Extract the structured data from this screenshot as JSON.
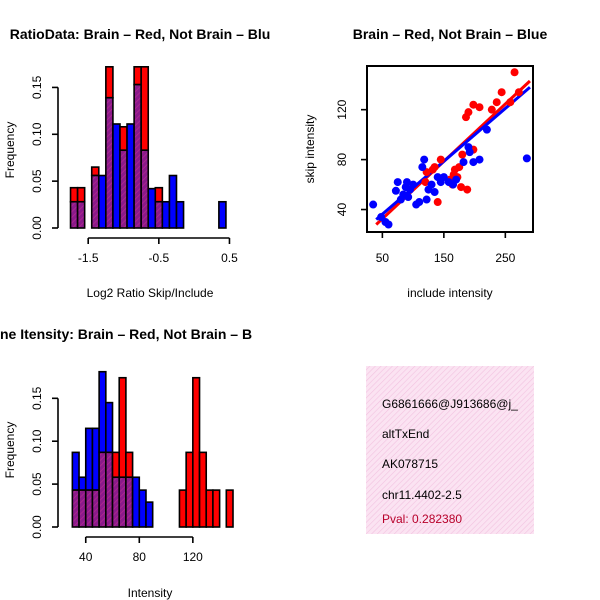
{
  "colors": {
    "red": "#ff0000",
    "blue": "#0000ff",
    "overlap": "#8b1a8b",
    "info_bg": "#f9dcef",
    "pval": "#b8002a"
  },
  "chart_data": [
    {
      "type": "bar",
      "id": "ratio-hist",
      "title": "RatioData: Brain – Red, Not Brain – Blu",
      "xlabel": "Log2 Ratio Skip/Include",
      "ylabel": "Frequency",
      "xlim": [
        -1.8,
        0.55
      ],
      "ylim": [
        0,
        0.175
      ],
      "xticks": [
        -1.5,
        -0.5,
        0.5
      ],
      "xtick_labels": [
        "-1.5",
        "-0.5",
        "0.5"
      ],
      "yticks": [
        0.0,
        0.05,
        0.1,
        0.15
      ],
      "ytick_labels": [
        "0.00",
        "0.05",
        "0.10",
        "0.15"
      ],
      "bin_width": 0.1,
      "bin_starts": [
        -1.75,
        -1.65,
        -1.55,
        -1.45,
        -1.35,
        -1.25,
        -1.15,
        -1.05,
        -0.95,
        -0.85,
        -0.75,
        -0.65,
        -0.55,
        -0.45,
        -0.35,
        -0.25,
        -0.15,
        -0.05,
        0.05,
        0.15,
        0.25,
        0.35
      ],
      "series": [
        {
          "name": "Brain",
          "color": "red",
          "values": [
            0.043,
            0.043,
            0.0,
            0.065,
            0.0,
            0.172,
            0.0,
            0.108,
            0.0,
            0.172,
            0.172,
            0.0,
            0.043,
            0.0,
            0.0,
            0.0,
            0.0,
            0.0,
            0.0,
            0.0,
            0.0,
            0.0
          ]
        },
        {
          "name": "Not Brain",
          "color": "blue",
          "values": [
            0.028,
            0.028,
            0.0,
            0.056,
            0.056,
            0.139,
            0.111,
            0.083,
            0.111,
            0.153,
            0.083,
            0.042,
            0.028,
            0.028,
            0.056,
            0.028,
            0.0,
            0.0,
            0.0,
            0.0,
            0.0,
            0.028
          ]
        }
      ]
    },
    {
      "type": "scatter",
      "id": "intensity-scatter",
      "title": "Brain – Red, Not Brain – Blue",
      "xlabel": "include intensity",
      "ylabel": "skip intensity",
      "xlim": [
        25,
        295
      ],
      "ylim": [
        22,
        155
      ],
      "xticks": [
        50,
        150,
        250
      ],
      "xtick_labels": [
        "50",
        "150",
        "250"
      ],
      "yticks": [
        40,
        80,
        120
      ],
      "ytick_labels": [
        "40",
        "80",
        "120"
      ],
      "series": [
        {
          "name": "Brain",
          "color": "red",
          "x": [
            265,
            272,
            244,
            258,
            236,
            228,
            208,
            198,
            190,
            186,
            180,
            175,
            168,
            166,
            172,
            160,
            164,
            178,
            188,
            198,
            145,
            135,
            132,
            140,
            122,
            120
          ],
          "y": [
            150,
            134,
            134,
            126,
            126,
            120,
            122,
            124,
            118,
            114,
            84,
            74,
            72,
            68,
            66,
            64,
            60,
            58,
            56,
            88,
            80,
            74,
            72,
            46,
            70,
            62
          ],
          "fit": [
            [
              40,
              28
            ],
            [
              290,
              143
            ]
          ]
        },
        {
          "name": "Not Brain",
          "color": "blue",
          "x": [
            35,
            48,
            55,
            60,
            72,
            75,
            80,
            84,
            88,
            90,
            92,
            95,
            100,
            105,
            110,
            115,
            118,
            122,
            125,
            130,
            135,
            140,
            145,
            150,
            158,
            165,
            170,
            182,
            190,
            192,
            198,
            208,
            220,
            285
          ],
          "y": [
            44,
            34,
            30,
            28,
            55,
            62,
            48,
            52,
            58,
            62,
            50,
            56,
            60,
            44,
            46,
            74,
            80,
            48,
            56,
            60,
            54,
            66,
            62,
            66,
            62,
            60,
            64,
            78,
            90,
            86,
            78,
            80,
            104,
            81
          ],
          "fit": [
            [
              40,
              32
            ],
            [
              290,
              138
            ]
          ]
        }
      ]
    },
    {
      "type": "bar",
      "id": "intensity-hist",
      "title": "Exon Inclusion/Exclusion Intensity: Brain – Red, Not Brain – B",
      "visible_title": "ne Itensity: Brain – Red, Not Brain – B",
      "xlabel": "Intensity",
      "ylabel": "Frequency",
      "xlim": [
        26,
        150
      ],
      "ylim": [
        0,
        0.19
      ],
      "xticks": [
        40,
        80,
        120
      ],
      "xtick_labels": [
        "40",
        "80",
        "120"
      ],
      "yticks": [
        0.0,
        0.05,
        0.1,
        0.15
      ],
      "ytick_labels": [
        "0.00",
        "0.05",
        "0.10",
        "0.15"
      ],
      "bin_width": 5,
      "bin_starts": [
        30,
        35,
        40,
        45,
        50,
        55,
        60,
        65,
        70,
        75,
        80,
        85,
        90,
        95,
        100,
        105,
        110,
        115,
        120,
        125,
        130,
        135,
        140,
        145
      ],
      "series": [
        {
          "name": "Brain",
          "color": "red",
          "values": [
            0.043,
            0.043,
            0.043,
            0.043,
            0.087,
            0.087,
            0.087,
            0.174,
            0.087,
            0.0,
            0.0,
            0.0,
            0.0,
            0.0,
            0.0,
            0.0,
            0.043,
            0.087,
            0.174,
            0.087,
            0.043,
            0.043,
            0.0,
            0.043
          ]
        },
        {
          "name": "Not Brain",
          "color": "blue",
          "values": [
            0.087,
            0.058,
            0.115,
            0.115,
            0.181,
            0.145,
            0.058,
            0.058,
            0.058,
            0.058,
            0.043,
            0.029,
            0.0,
            0.0,
            0.0,
            0.0,
            0.0,
            0.0,
            0.0,
            0.0,
            0.0,
            0.0,
            0.0,
            0.0
          ]
        }
      ]
    }
  ],
  "info_box": {
    "lines": [
      "G6861666@J913686@j_",
      "altTxEnd",
      "AK078715",
      "chr11.4402-2.5"
    ],
    "pval": "Pval: 0.282380"
  }
}
